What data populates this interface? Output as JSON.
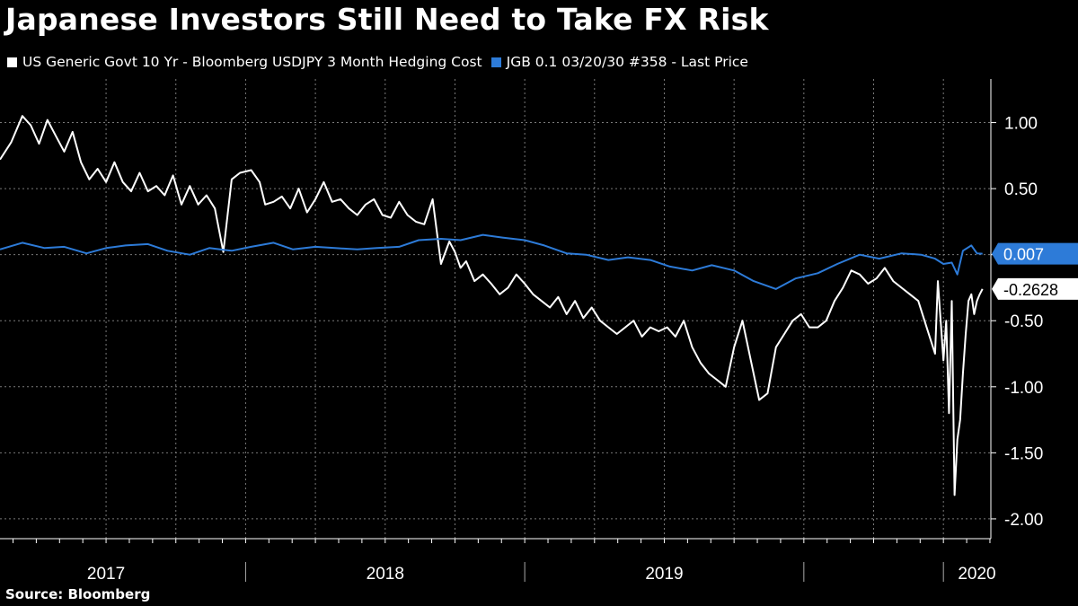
{
  "title": "Japanese Investors Still Need to Take FX Risk",
  "source": "Source: Bloomberg",
  "colors": {
    "background": "#000000",
    "series_white": "#ffffff",
    "series_blue": "#2d7bd8",
    "grid": "#7a7a7a"
  },
  "chart_data": {
    "type": "line",
    "title": "Japanese Investors Still Need to Take FX Risk",
    "xlabel": "",
    "ylabel": "",
    "x_range": [
      2016.62,
      2020.17
    ],
    "ylim": [
      -2.15,
      1.33
    ],
    "y_ticks": [
      1.0,
      0.5,
      0.0,
      -0.5,
      -1.0,
      -1.5,
      -2.0
    ],
    "y_tick_labels": [
      "1.00",
      "0.50",
      "",
      "-0.50",
      "-1.00",
      "-1.50",
      "-2.00"
    ],
    "x_ticks": [
      2017.5,
      2018.5,
      2019.5,
      2020.0
    ],
    "x_tick_labels": [
      "2017",
      "2018",
      "2019",
      "2020"
    ],
    "x_label_positions": [
      2017.0,
      2018.0,
      2019.0,
      2020.12
    ],
    "legend_position": "top-left",
    "series": [
      {
        "name": "US Generic Govt 10 Yr - Bloomberg USDJPY 3 Month Hedging Cost",
        "color": "#ffffff",
        "last_value": "-0.2628",
        "x": [
          2016.62,
          2016.66,
          2016.7,
          2016.73,
          2016.76,
          2016.79,
          2016.82,
          2016.85,
          2016.88,
          2016.91,
          2016.94,
          2016.97,
          2017.0,
          2017.03,
          2017.06,
          2017.09,
          2017.12,
          2017.15,
          2017.18,
          2017.21,
          2017.24,
          2017.27,
          2017.3,
          2017.33,
          2017.36,
          2017.39,
          2017.42,
          2017.45,
          2017.48,
          2017.52,
          2017.55,
          2017.57,
          2017.6,
          2017.63,
          2017.66,
          2017.69,
          2017.72,
          2017.75,
          2017.78,
          2017.81,
          2017.84,
          2017.87,
          2017.9,
          2017.93,
          2017.96,
          2017.99,
          2018.02,
          2018.05,
          2018.08,
          2018.11,
          2018.14,
          2018.17,
          2018.2,
          2018.23,
          2018.25,
          2018.27,
          2018.29,
          2018.32,
          2018.35,
          2018.38,
          2018.41,
          2018.44,
          2018.47,
          2018.5,
          2018.53,
          2018.56,
          2018.59,
          2018.62,
          2018.65,
          2018.68,
          2018.71,
          2018.74,
          2018.77,
          2018.8,
          2018.83,
          2018.86,
          2018.89,
          2018.92,
          2018.95,
          2018.98,
          2019.01,
          2019.04,
          2019.07,
          2019.1,
          2019.13,
          2019.16,
          2019.19,
          2019.22,
          2019.25,
          2019.28,
          2019.31,
          2019.34,
          2019.37,
          2019.4,
          2019.43,
          2019.46,
          2019.49,
          2019.52,
          2019.55,
          2019.58,
          2019.61,
          2019.64,
          2019.67,
          2019.7,
          2019.73,
          2019.76,
          2019.79,
          2019.82,
          2019.85,
          2019.88,
          2019.91,
          2019.94,
          2019.97,
          2019.98,
          2020.0,
          2020.01,
          2020.02,
          2020.03,
          2020.04,
          2020.05,
          2020.06,
          2020.07,
          2020.08,
          2020.09,
          2020.1,
          2020.11,
          2020.12,
          2020.13,
          2020.14
        ],
        "y": [
          0.72,
          0.85,
          1.05,
          0.98,
          0.84,
          1.02,
          0.9,
          0.78,
          0.93,
          0.7,
          0.57,
          0.65,
          0.55,
          0.7,
          0.55,
          0.48,
          0.62,
          0.48,
          0.52,
          0.45,
          0.6,
          0.38,
          0.52,
          0.38,
          0.45,
          0.35,
          0.02,
          0.57,
          0.62,
          0.64,
          0.55,
          0.38,
          0.4,
          0.44,
          0.35,
          0.5,
          0.32,
          0.42,
          0.55,
          0.4,
          0.42,
          0.35,
          0.3,
          0.38,
          0.42,
          0.3,
          0.28,
          0.4,
          0.3,
          0.25,
          0.23,
          0.42,
          -0.07,
          0.1,
          0.02,
          -0.1,
          -0.05,
          -0.2,
          -0.15,
          -0.22,
          -0.3,
          -0.25,
          -0.15,
          -0.22,
          -0.3,
          -0.35,
          -0.4,
          -0.32,
          -0.45,
          -0.35,
          -0.48,
          -0.4,
          -0.5,
          -0.55,
          -0.6,
          -0.55,
          -0.5,
          -0.62,
          -0.55,
          -0.58,
          -0.55,
          -0.62,
          -0.5,
          -0.7,
          -0.82,
          -0.9,
          -0.95,
          -1.0,
          -0.7,
          -0.5,
          -0.8,
          -1.1,
          -1.05,
          -0.7,
          -0.6,
          -0.5,
          -0.45,
          -0.55,
          -0.55,
          -0.5,
          -0.35,
          -0.25,
          -0.12,
          -0.15,
          -0.22,
          -0.18,
          -0.1,
          -0.2,
          -0.25,
          -0.3,
          -0.35,
          -0.55,
          -0.75,
          -0.2,
          -0.8,
          -0.5,
          -1.2,
          -0.35,
          -1.82,
          -1.4,
          -1.25,
          -0.9,
          -0.6,
          -0.35,
          -0.3,
          -0.45,
          -0.35,
          -0.3,
          -0.26
        ]
      },
      {
        "name": "JGB 0.1 03/20/30 #358 - Last Price",
        "color": "#2d7bd8",
        "last_value": "0.007",
        "x": [
          2016.62,
          2016.7,
          2016.78,
          2016.85,
          2016.93,
          2017.0,
          2017.07,
          2017.15,
          2017.22,
          2017.3,
          2017.37,
          2017.45,
          2017.52,
          2017.6,
          2017.67,
          2017.75,
          2017.82,
          2017.9,
          2017.97,
          2018.05,
          2018.12,
          2018.2,
          2018.27,
          2018.35,
          2018.42,
          2018.5,
          2018.57,
          2018.65,
          2018.72,
          2018.8,
          2018.87,
          2018.95,
          2019.02,
          2019.1,
          2019.17,
          2019.25,
          2019.32,
          2019.4,
          2019.47,
          2019.55,
          2019.62,
          2019.7,
          2019.77,
          2019.85,
          2019.92,
          2019.97,
          2020.0,
          2020.03,
          2020.05,
          2020.07,
          2020.1,
          2020.12,
          2020.14
        ],
        "y": [
          0.04,
          0.09,
          0.05,
          0.06,
          0.01,
          0.05,
          0.07,
          0.08,
          0.03,
          0.0,
          0.05,
          0.03,
          0.06,
          0.09,
          0.04,
          0.06,
          0.05,
          0.04,
          0.05,
          0.06,
          0.11,
          0.12,
          0.11,
          0.15,
          0.13,
          0.11,
          0.07,
          0.01,
          0.0,
          -0.04,
          -0.02,
          -0.04,
          -0.09,
          -0.12,
          -0.08,
          -0.12,
          -0.2,
          -0.26,
          -0.18,
          -0.14,
          -0.07,
          0.0,
          -0.03,
          0.01,
          0.0,
          -0.03,
          -0.07,
          -0.06,
          -0.15,
          0.03,
          0.07,
          0.01,
          0.007
        ]
      }
    ]
  }
}
